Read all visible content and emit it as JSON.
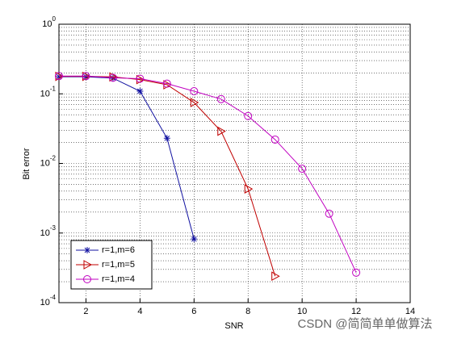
{
  "chart_data": {
    "type": "line",
    "xlabel": "SNR",
    "ylabel": "Bit error",
    "xlim": [
      1,
      14
    ],
    "xticks": [
      2,
      4,
      6,
      8,
      10,
      12,
      14
    ],
    "ylim": [
      0.0001,
      1
    ],
    "log_y": true,
    "yticks": [
      {
        "value": 0.0001,
        "label": "10^-4"
      },
      {
        "value": 0.001,
        "label": "10^-3"
      },
      {
        "value": 0.01,
        "label": "10^-2"
      },
      {
        "value": 0.1,
        "label": "10^-1"
      },
      {
        "value": 1,
        "label": "10^0"
      }
    ],
    "grid": true,
    "minor_grid": true,
    "legend": "southwest",
    "series": [
      {
        "name": "r=1,m=6",
        "color": "#1010a0",
        "marker": "star",
        "x": [
          1,
          2,
          3,
          4,
          5,
          6
        ],
        "values": [
          0.176,
          0.176,
          0.168,
          0.109,
          0.023,
          0.00082
        ]
      },
      {
        "name": "r=1,m=5",
        "color": "#c00000",
        "marker": "triangle-right",
        "x": [
          1,
          2,
          3,
          4,
          5,
          6,
          7,
          8,
          9
        ],
        "values": [
          0.178,
          0.178,
          0.175,
          0.16,
          0.135,
          0.075,
          0.029,
          0.0043,
          0.00024
        ]
      },
      {
        "name": "r=1,m=4",
        "color": "#c000c0",
        "marker": "circle",
        "x": [
          1,
          2,
          3,
          4,
          5,
          6,
          7,
          8,
          9,
          10,
          11,
          12
        ],
        "values": [
          0.18,
          0.18,
          0.17,
          0.165,
          0.14,
          0.109,
          0.084,
          0.048,
          0.022,
          0.0084,
          0.0019,
          0.00027
        ]
      }
    ],
    "watermark": "CSDN @简简单单做算法"
  }
}
